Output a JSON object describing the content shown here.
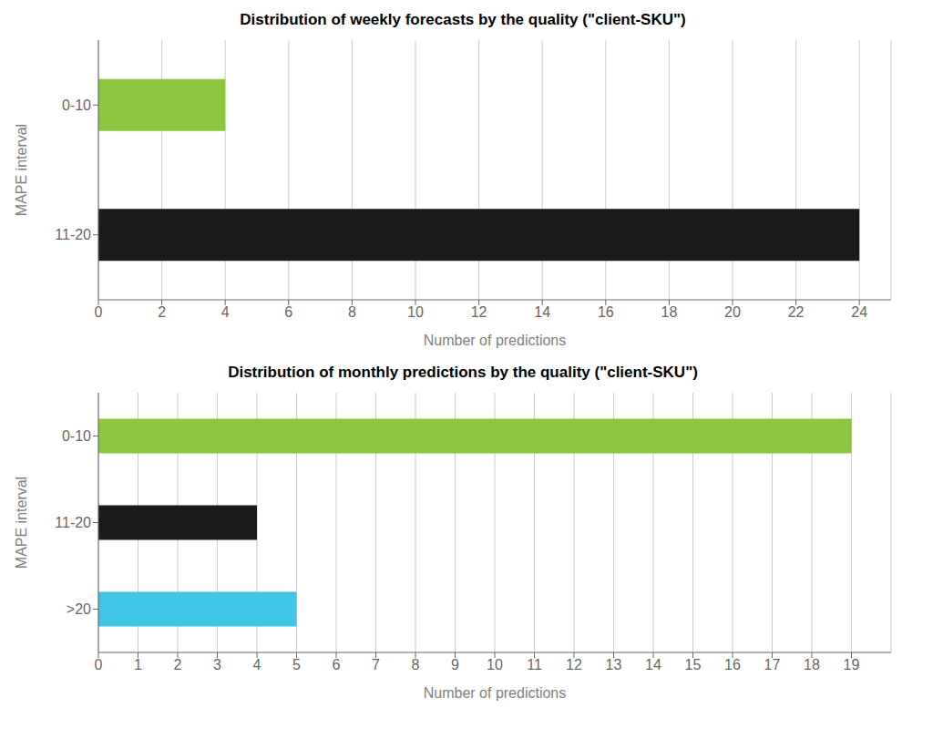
{
  "chart_data": [
    {
      "type": "bar",
      "orientation": "horizontal",
      "title": "Distribution of weekly forecasts by the quality (\"client-SKU\")",
      "categories": [
        "0-10",
        "11-20"
      ],
      "values": [
        4,
        24
      ],
      "colors": [
        "#8dc63f",
        "#1a1a1a"
      ],
      "xlabel": "Number of predictions",
      "ylabel": "MAPE interval",
      "xlim": [
        0,
        25
      ],
      "xticks": [
        0,
        2,
        4,
        6,
        8,
        10,
        12,
        14,
        16,
        18,
        20,
        22,
        24
      ],
      "grid": true
    },
    {
      "type": "bar",
      "orientation": "horizontal",
      "title": "Distribution of monthly predictions by the quality (\"client-SKU\")",
      "categories": [
        "0-10",
        "11-20",
        ">20"
      ],
      "values": [
        19,
        4,
        5
      ],
      "colors": [
        "#8dc63f",
        "#1a1a1a",
        "#40c4e8"
      ],
      "xlabel": "Number of predictions",
      "ylabel": "MAPE interval",
      "xlim": [
        0,
        20
      ],
      "xticks": [
        0,
        1,
        2,
        3,
        4,
        5,
        6,
        7,
        8,
        9,
        10,
        11,
        12,
        13,
        14,
        15,
        16,
        17,
        18,
        19
      ],
      "grid": true
    }
  ]
}
